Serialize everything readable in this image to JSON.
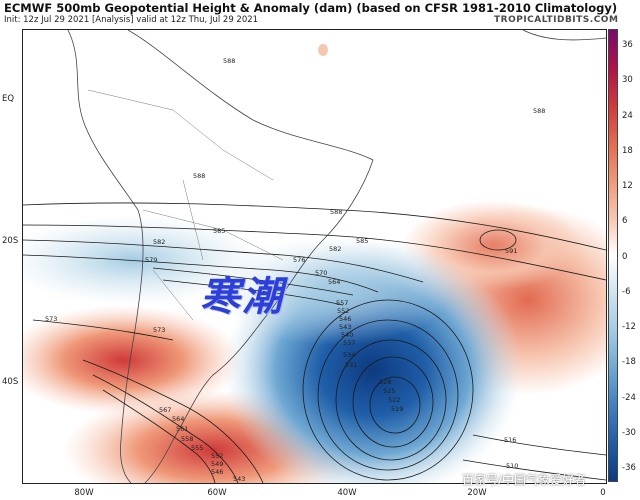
{
  "header": {
    "title": "ECMWF 500mb Geopotential Height & Anomaly (dam) (based on CFSR 1981-2010 Climatology)",
    "subtitle": "Init: 12z Jul 29 2021   [Analysis]   valid at 12z Thu, Jul 29 2021",
    "credit": "TROPICALTIDBITS.COM"
  },
  "axes": {
    "lat_labels": [
      "EQ",
      "20S",
      "40S"
    ],
    "lon_labels": [
      "80W",
      "60W",
      "40W",
      "20W",
      "0"
    ]
  },
  "colorbar": {
    "ticks": [
      "36",
      "30",
      "24",
      "18",
      "12",
      "6",
      "0",
      "-6",
      "-12",
      "-18",
      "-24",
      "-30",
      "-36"
    ],
    "colors": [
      "#7a0a6e",
      "#b0124a",
      "#cf3a3a",
      "#e26a50",
      "#ef9878",
      "#f7c6b0",
      "#ffffff",
      "#cfe3ef",
      "#a3cbe3",
      "#6fa8d3",
      "#3f80be",
      "#1f5ea8",
      "#0d3a80"
    ]
  },
  "contour_labels": [
    "588",
    "588",
    "588",
    "588",
    "585",
    "582",
    "579",
    "576",
    "570",
    "564",
    "585",
    "591",
    "582",
    "573",
    "573",
    "567",
    "564",
    "561",
    "558",
    "555",
    "552",
    "549",
    "546",
    "543",
    "557",
    "552",
    "546",
    "543",
    "540",
    "537",
    "534",
    "531",
    "528",
    "525",
    "522",
    "519",
    "516",
    "510"
  ],
  "overlay_text": "寒潮",
  "watermark": "百家号/中国气象爱好者"
}
